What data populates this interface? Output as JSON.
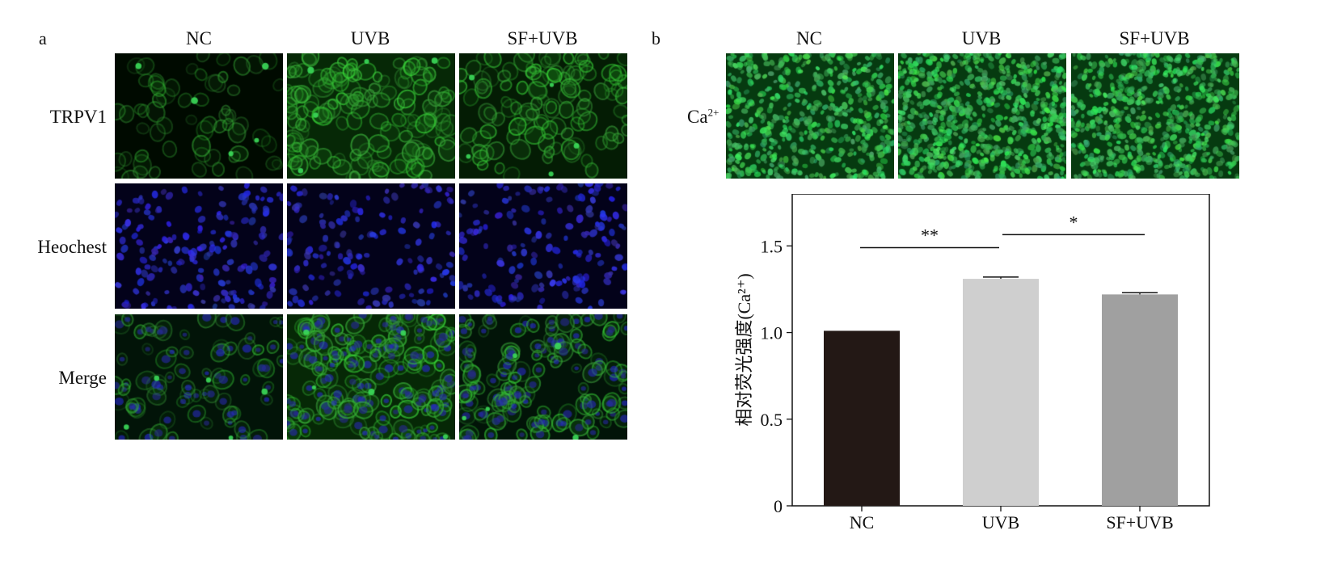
{
  "panel_a": {
    "letter": "a",
    "columns": [
      "NC",
      "UVB",
      "SF+UVB"
    ],
    "rows": [
      "TRPV1",
      "Heochest",
      "Merge"
    ]
  },
  "panel_b": {
    "letter": "b",
    "columns": [
      "NC",
      "UVB",
      "SF+UVB"
    ],
    "row_label_base": "Ca",
    "row_label_sup": "2+"
  },
  "chart_data": {
    "type": "bar",
    "categories": [
      "NC",
      "UVB",
      "SF+UVB"
    ],
    "values": [
      1.01,
      1.31,
      1.22
    ],
    "errors": [
      0.0,
      0.01,
      0.01
    ],
    "bar_colors": [
      "#231815",
      "#cfcfcf",
      "#a0a0a0"
    ],
    "ylabel": "相对荧光强度(Ca²⁺)",
    "ylim": [
      0,
      1.8
    ],
    "yticks": [
      0,
      0.5,
      1.0,
      1.5
    ],
    "ytick_labels": [
      "0",
      "0.5",
      "1.0",
      "1.5"
    ],
    "significance": [
      {
        "from": 0,
        "to": 1,
        "label": "**"
      },
      {
        "from": 1,
        "to": 2,
        "label": "*"
      }
    ]
  }
}
